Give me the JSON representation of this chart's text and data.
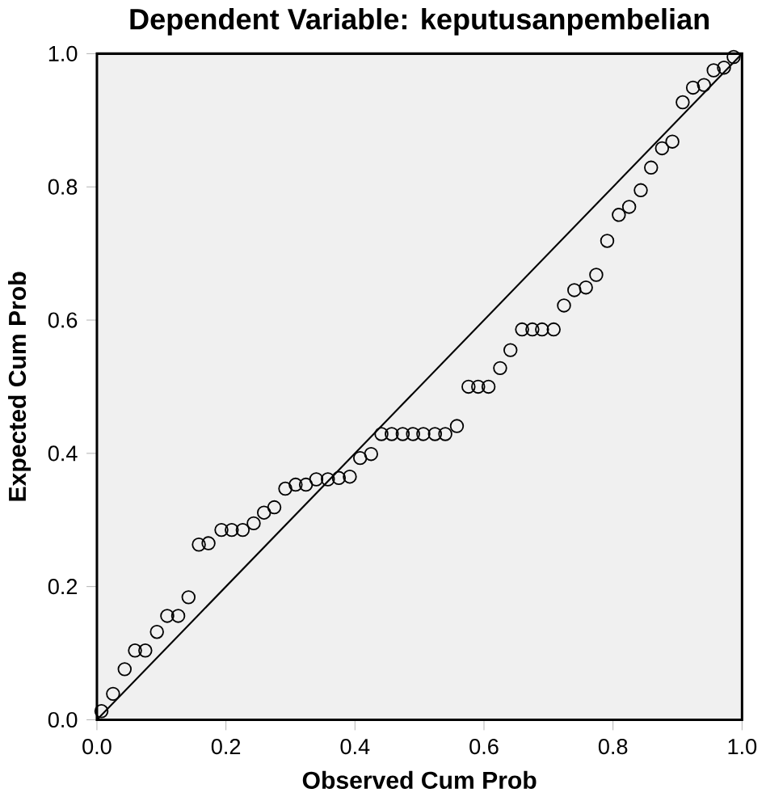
{
  "chart_data": {
    "type": "scatter",
    "title": "Dependent Variable: keputusanpembelian",
    "xlabel": "Observed Cum Prob",
    "ylabel": "Expected Cum Prob",
    "xlim": [
      0,
      1
    ],
    "ylim": [
      0,
      1
    ],
    "xticks": [
      {
        "value": 0,
        "label": "0.0"
      },
      0.2,
      0.4,
      0.6,
      0.8,
      {
        "value": 1,
        "label": "1.0"
      }
    ],
    "yticks": [
      {
        "value": 0,
        "label": "0.0"
      },
      0.2,
      0.4,
      0.6,
      0.8,
      {
        "value": 1,
        "label": "1.0"
      }
    ],
    "grid": false,
    "marker": "circle",
    "series": [
      {
        "color": "#000000",
        "x": [
          0.007,
          0.025,
          0.043,
          0.059,
          0.075,
          0.093,
          0.109,
          0.126,
          0.142,
          0.158,
          0.173,
          0.193,
          0.209,
          0.226,
          0.243,
          0.259,
          0.275,
          0.292,
          0.308,
          0.324,
          0.34,
          0.358,
          0.375,
          0.392,
          0.408,
          0.425,
          0.441,
          0.457,
          0.474,
          0.49,
          0.506,
          0.524,
          0.54,
          0.558,
          0.576,
          0.591,
          0.607,
          0.625,
          0.641,
          0.659,
          0.675,
          0.69,
          0.708,
          0.724,
          0.74,
          0.758,
          0.774,
          0.791,
          0.809,
          0.825,
          0.843,
          0.859,
          0.876,
          0.892,
          0.908,
          0.924,
          0.941,
          0.956,
          0.972,
          0.987
        ],
        "values": [
          0.013,
          0.039,
          0.076,
          0.104,
          0.104,
          0.132,
          0.156,
          0.156,
          0.184,
          0.263,
          0.265,
          0.285,
          0.285,
          0.285,
          0.295,
          0.311,
          0.319,
          0.347,
          0.353,
          0.353,
          0.361,
          0.361,
          0.363,
          0.365,
          0.393,
          0.399,
          0.429,
          0.429,
          0.429,
          0.429,
          0.429,
          0.429,
          0.429,
          0.441,
          0.5,
          0.5,
          0.5,
          0.528,
          0.555,
          0.586,
          0.586,
          0.586,
          0.586,
          0.622,
          0.645,
          0.649,
          0.668,
          0.719,
          0.758,
          0.77,
          0.795,
          0.829,
          0.858,
          0.868,
          0.927,
          0.949,
          0.953,
          0.975,
          0.979,
          0.995
        ]
      },
      {
        "type": "line",
        "color": "#000000",
        "marker": "none",
        "line_style": "solid",
        "x": [
          0,
          1
        ],
        "values": [
          0,
          1
        ]
      }
    ]
  }
}
